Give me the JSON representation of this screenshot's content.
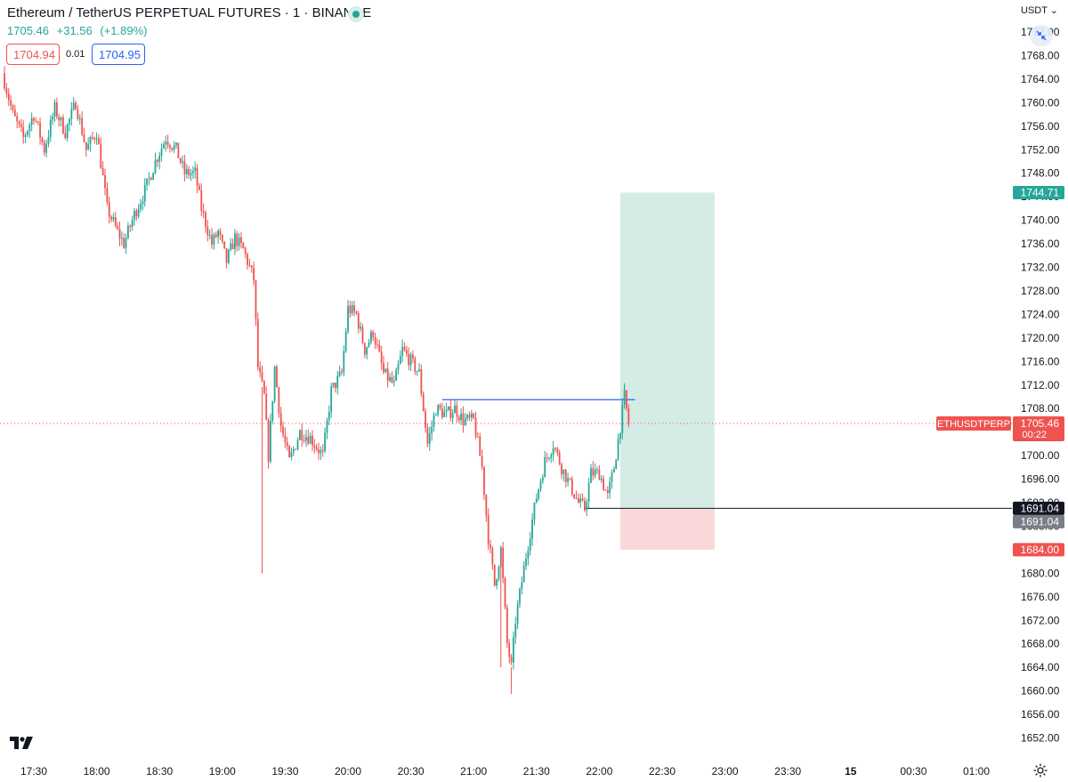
{
  "header": {
    "title": "Ethereum / TetherUS PERPETUAL FUTURES · 1 · BINANCE",
    "last_price": "1705.46",
    "change": "+31.56",
    "change_pct": "(+1.89%)",
    "sell_price": "1704.94",
    "spread": "0.01",
    "buy_price": "1704.95",
    "currency": "USDT"
  },
  "colors": {
    "up": "#26a69a",
    "down": "#ef5350",
    "target_zone": "#d4ebe6",
    "stop_zone": "#f8d8d9",
    "level_line": "#2962ff"
  },
  "chart_data": {
    "type": "candlestick",
    "symbol": "ETHUSDTPERP",
    "interval": "1",
    "y_scale": "linear",
    "ylim": [
      1650,
      1775
    ],
    "y_ticks": [
      "1652.00",
      "1656.00",
      "1660.00",
      "1664.00",
      "1668.00",
      "1672.00",
      "1676.00",
      "1680.00",
      "1684.00",
      "1688.00",
      "1692.00",
      "1696.00",
      "1700.00",
      "1704.00",
      "1708.00",
      "1712.00",
      "1716.00",
      "1720.00",
      "1724.00",
      "1728.00",
      "1732.00",
      "1736.00",
      "1740.00",
      "1744.00",
      "1748.00",
      "1752.00",
      "1756.00",
      "1760.00",
      "1764.00",
      "1768.00",
      "1772.00"
    ],
    "x_ticks": [
      "17:30",
      "18:00",
      "18:30",
      "19:00",
      "19:30",
      "20:00",
      "20:30",
      "21:00",
      "21:30",
      "22:00",
      "22:30",
      "23:00",
      "23:30",
      "15",
      "00:30",
      "01:00"
    ],
    "bold_tick": "15",
    "path": [
      [
        "17:15",
        1765
      ],
      [
        "17:20",
        1758
      ],
      [
        "17:25",
        1754
      ],
      [
        "17:30",
        1758
      ],
      [
        "17:35",
        1752
      ],
      [
        "17:40",
        1759
      ],
      [
        "17:45",
        1755
      ],
      [
        "17:50",
        1760
      ],
      [
        "17:55",
        1752
      ],
      [
        "18:00",
        1755
      ],
      [
        "18:05",
        1742
      ],
      [
        "18:10",
        1738
      ],
      [
        "18:13",
        1736
      ],
      [
        "18:18",
        1741
      ],
      [
        "18:23",
        1745
      ],
      [
        "18:28",
        1750
      ],
      [
        "18:33",
        1754
      ],
      [
        "18:38",
        1752
      ],
      [
        "18:42",
        1748
      ],
      [
        "18:47",
        1748
      ],
      [
        "18:50",
        1742
      ],
      [
        "18:55",
        1736
      ],
      [
        "18:58",
        1738
      ],
      [
        "19:02",
        1733
      ],
      [
        "19:06",
        1737
      ],
      [
        "19:10",
        1735
      ],
      [
        "19:15",
        1730
      ],
      [
        "19:17",
        1715
      ],
      [
        "19:20",
        1710
      ],
      [
        "19:22",
        1700
      ],
      [
        "19:25",
        1715
      ],
      [
        "19:28",
        1705
      ],
      [
        "19:32",
        1699
      ],
      [
        "19:37",
        1704
      ],
      [
        "19:42",
        1703
      ],
      [
        "19:48",
        1700
      ],
      [
        "19:52",
        1711
      ],
      [
        "19:57",
        1714
      ],
      [
        "20:00",
        1725
      ],
      [
        "20:04",
        1724
      ],
      [
        "20:08",
        1718
      ],
      [
        "20:12",
        1721
      ],
      [
        "20:17",
        1714
      ],
      [
        "20:22",
        1712
      ],
      [
        "20:26",
        1718
      ],
      [
        "20:30",
        1716
      ],
      [
        "20:34",
        1714
      ],
      [
        "20:38",
        1702
      ],
      [
        "20:42",
        1708
      ],
      [
        "20:47",
        1707
      ],
      [
        "20:51",
        1708
      ],
      [
        "20:55",
        1706
      ],
      [
        "21:00",
        1706
      ],
      [
        "21:04",
        1698
      ],
      [
        "21:07",
        1686
      ],
      [
        "21:10",
        1678
      ],
      [
        "21:13",
        1684
      ],
      [
        "21:16",
        1668
      ],
      [
        "21:18",
        1664
      ],
      [
        "21:20",
        1672
      ],
      [
        "21:25",
        1683
      ],
      [
        "21:30",
        1693
      ],
      [
        "21:34",
        1699
      ],
      [
        "21:38",
        1702
      ],
      [
        "21:42",
        1698
      ],
      [
        "21:46",
        1695
      ],
      [
        "21:50",
        1692
      ],
      [
        "21:53",
        1691
      ],
      [
        "21:56",
        1697
      ],
      [
        "22:00",
        1697
      ],
      [
        "22:04",
        1693
      ],
      [
        "22:07",
        1698
      ],
      [
        "22:10",
        1705
      ],
      [
        "22:12",
        1710
      ],
      [
        "22:14",
        1705.46
      ]
    ],
    "wicks": [
      {
        "x": "19:19",
        "low": 1680
      },
      {
        "x": "21:18",
        "low": 1659.5
      },
      {
        "x": "21:13",
        "low": 1664
      },
      {
        "x": "22:12",
        "high": 1712.3
      }
    ],
    "last_price": 1705.46,
    "last_price_label": "1705.46",
    "countdown": "00:22",
    "symbol_label": "ETHUSDTPERP",
    "horizontal_level": {
      "price": 1709.5,
      "from": "20:45",
      "to": "22:17"
    },
    "position": {
      "type": "long",
      "start": "22:10",
      "end": "22:55",
      "entry": 1691.04,
      "target": 1744.71,
      "stop": 1684.0,
      "entry_label": "1691.04",
      "target_label": "1744.71",
      "stop_label": "1684.00"
    }
  }
}
